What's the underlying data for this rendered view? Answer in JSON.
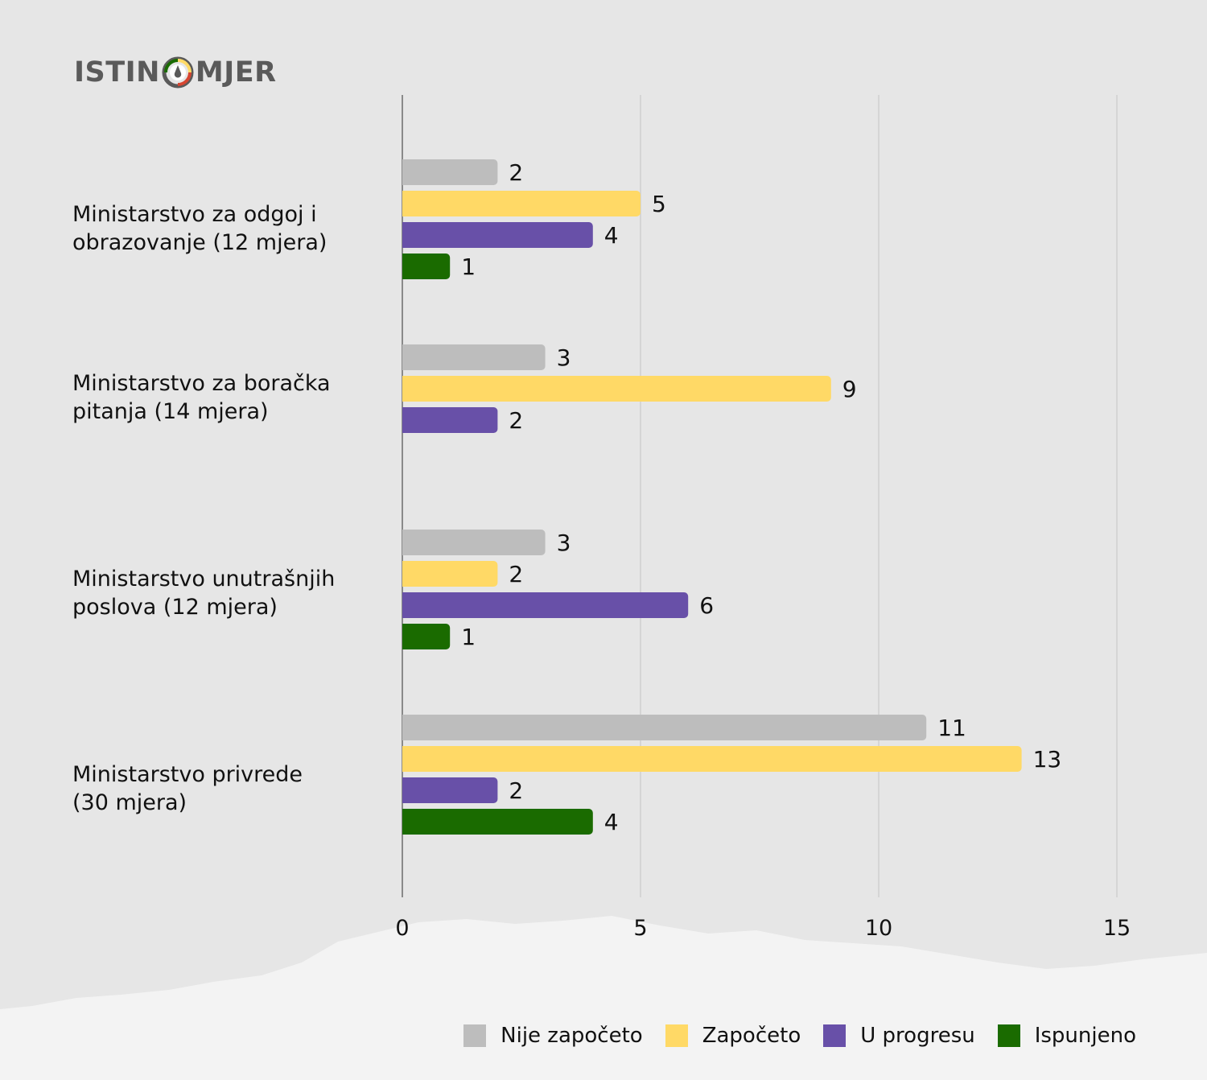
{
  "logo": {
    "left": "ISTIN",
    "right": "MJER"
  },
  "chart_data": {
    "type": "bar",
    "orientation": "horizontal",
    "categories": [
      "Ministarstvo za odgoj i\nobrazovanje (12 mjera)",
      "Ministarstvo za boračka\npitanja (14 mjera)",
      "Ministarstvo unutrašnjih\nposlova (12 mjera)",
      "Ministarstvo privrede\n(30 mjera)"
    ],
    "series": [
      {
        "name": "Nije započeto",
        "color": "#bdbdbd",
        "values": [
          2,
          3,
          3,
          11
        ]
      },
      {
        "name": "Započeto",
        "color": "#ffd966",
        "values": [
          5,
          9,
          2,
          13
        ]
      },
      {
        "name": "U progresu",
        "color": "#6850a8",
        "values": [
          4,
          2,
          6,
          2
        ]
      },
      {
        "name": "Ispunjeno",
        "color": "#1a6b00",
        "values": [
          1,
          null,
          1,
          4
        ]
      }
    ],
    "xlim": [
      0,
      15
    ],
    "xticks": [
      0,
      5,
      10,
      15
    ],
    "grid": true,
    "legend_position": "bottom-right",
    "data_labels": true
  }
}
